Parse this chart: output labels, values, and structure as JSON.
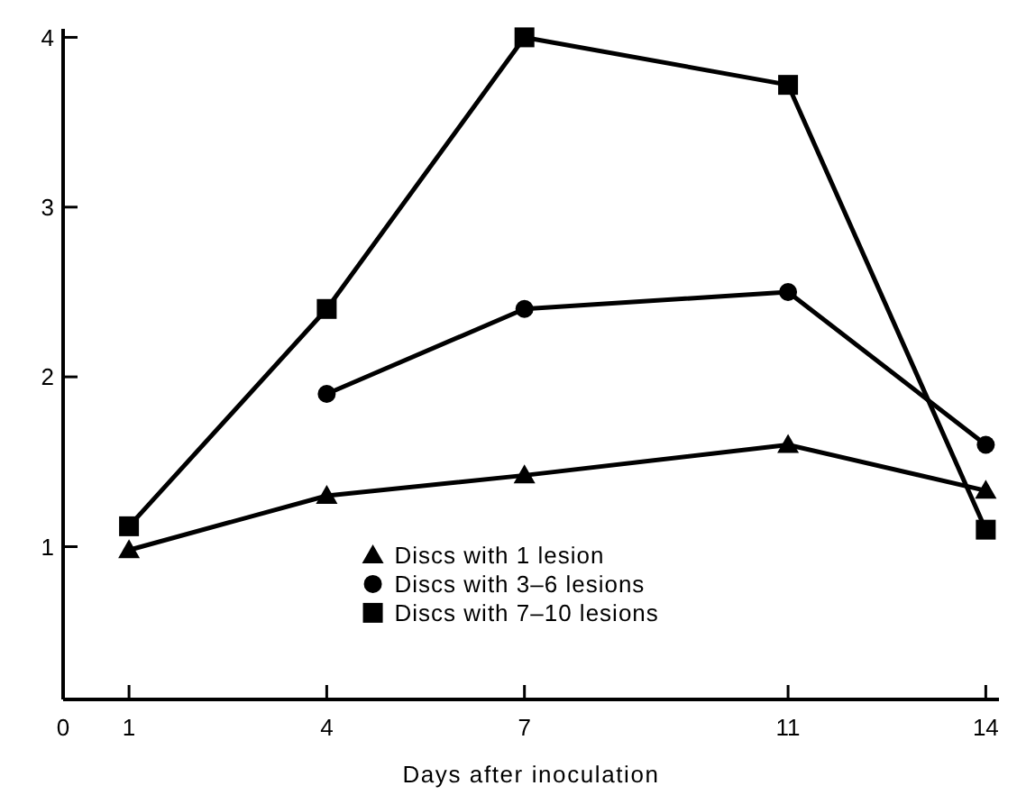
{
  "chart_data": {
    "type": "line",
    "xlabel": "Days after inoculation",
    "x": [
      1,
      4,
      7,
      11,
      14
    ],
    "xlim": [
      0,
      14.2
    ],
    "xticks": [
      0,
      1,
      4,
      7,
      11,
      14
    ],
    "ylim": [
      0.1,
      4.05
    ],
    "yticks": [
      1,
      2,
      3,
      4
    ],
    "legend": "bottom",
    "grid": false,
    "line_style": "solid",
    "series": [
      {
        "name": "Discs with 1 lesion",
        "color": "#000000",
        "marker": "triangle",
        "values": [
          0.98,
          1.3,
          1.42,
          1.6,
          1.33
        ]
      },
      {
        "name": "Discs with 3–6 lesions",
        "color": "#000000",
        "marker": "circle",
        "values": [
          null,
          1.9,
          2.4,
          2.5,
          1.6
        ]
      },
      {
        "name": "Discs with 7–10 lesions",
        "color": "#000000",
        "marker": "square",
        "values": [
          1.12,
          2.4,
          4.0,
          3.72,
          1.1
        ]
      }
    ]
  }
}
